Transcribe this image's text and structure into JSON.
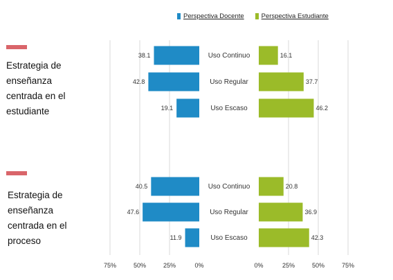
{
  "legend": {
    "docente": "Perspectiva Docente",
    "estudiante": "Perspectiva Estudiante"
  },
  "colors": {
    "docente": "#1f8bc6",
    "estudiante": "#9bbb29",
    "marker": "#d9656a",
    "grid": "#d9d9d9",
    "text": "#333333"
  },
  "groups": [
    {
      "title": "Estrategia de enseñanza centrada en el estudiante"
    },
    {
      "title": "Estrategia de enseñanza centrada en el proceso"
    }
  ],
  "chart_data": {
    "type": "bar",
    "orientation": "horizontal",
    "layout": "butterfly",
    "categories": [
      "Uso Continuo",
      "Uso Regular",
      "Uso Escaso"
    ],
    "groups": [
      "Estrategia de enseñanza centrada en el estudiante",
      "Estrategia de enseñanza centrada en el proceso"
    ],
    "series": [
      {
        "name": "Perspectiva Docente",
        "side": "left",
        "values": [
          [
            38.1,
            42.8,
            19.1
          ],
          [
            40.5,
            47.6,
            11.9
          ]
        ]
      },
      {
        "name": "Perspectiva Estudiante",
        "side": "right",
        "values": [
          [
            16.1,
            37.7,
            46.2
          ],
          [
            20.8,
            36.9,
            42.3
          ]
        ]
      }
    ],
    "xlim": [
      0,
      75
    ],
    "left_ticks": [
      "75%",
      "50%",
      "25%",
      "0%"
    ],
    "right_ticks": [
      "0%",
      "25%",
      "50%",
      "75%"
    ],
    "grid": true,
    "legend_position": "top"
  }
}
